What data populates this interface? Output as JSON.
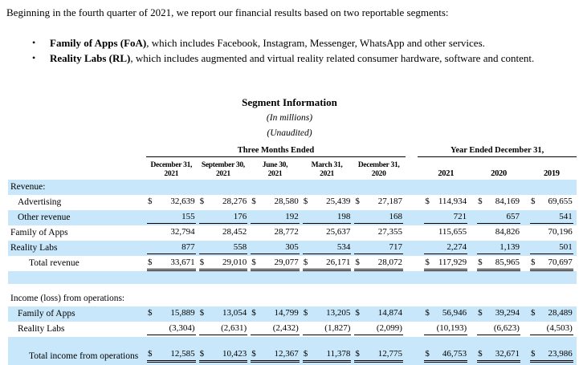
{
  "intro": {
    "paragraph": "Beginning in the fourth quarter of 2021, we report our financial results based on two reportable segments:",
    "bullet_glyph": "•",
    "bullets": [
      {
        "bold": "Family of Apps (FoA)",
        "rest": ", which includes Facebook, Instagram, Messenger, WhatsApp and other services."
      },
      {
        "bold": "Reality Labs (RL)",
        "rest": ", which includes augmented and virtual reality related consumer hardware, software and content."
      }
    ]
  },
  "table": {
    "title": "Segment Information",
    "note_millions": "(In millions)",
    "note_unaudited": "(Unaudited)",
    "dollar_sign": "$",
    "highlight_color": "#c8e7fa",
    "col_groups": [
      {
        "label": "Three Months Ended",
        "span": 5
      },
      {
        "label": "Year Ended December 31,",
        "span": 3
      }
    ],
    "columns": [
      {
        "l1": "December 31,",
        "l2": "2021"
      },
      {
        "l1": "September 30,",
        "l2": "2021"
      },
      {
        "l1": "June 30,",
        "l2": "2021"
      },
      {
        "l1": "March 31,",
        "l2": "2021"
      },
      {
        "l1": "December 31,",
        "l2": "2020"
      },
      {
        "l1": "2021",
        "l2": ""
      },
      {
        "l1": "2020",
        "l2": ""
      },
      {
        "l1": "2019",
        "l2": ""
      }
    ],
    "rows": [
      {
        "type": "section",
        "label": "Revenue:",
        "bg": "blue",
        "indent": 0
      },
      {
        "type": "data",
        "label": "Advertising",
        "bg": "white",
        "indent": 1,
        "dollar": true,
        "underline": "none",
        "values": [
          "32,639",
          "28,276",
          "28,580",
          "25,439",
          "27,187",
          "114,934",
          "84,169",
          "69,655"
        ]
      },
      {
        "type": "data",
        "label": "Other revenue",
        "bg": "blue",
        "indent": 1,
        "dollar": false,
        "underline": "single",
        "values": [
          "155",
          "176",
          "192",
          "198",
          "168",
          "721",
          "657",
          "541"
        ]
      },
      {
        "type": "data",
        "label": "Family of Apps",
        "bg": "white",
        "indent": 0,
        "dollar": false,
        "underline": "none",
        "values": [
          "32,794",
          "28,452",
          "28,772",
          "25,637",
          "27,355",
          "115,655",
          "84,826",
          "70,196"
        ]
      },
      {
        "type": "data",
        "label": "Reality Labs",
        "bg": "blue",
        "indent": 0,
        "dollar": false,
        "underline": "single",
        "values": [
          "877",
          "558",
          "305",
          "534",
          "717",
          "2,274",
          "1,139",
          "501"
        ]
      },
      {
        "type": "data",
        "label": "Total revenue",
        "bg": "white",
        "indent": 2,
        "dollar": true,
        "underline": "double",
        "values": [
          "33,671",
          "29,010",
          "29,077",
          "26,171",
          "28,072",
          "117,929",
          "85,965",
          "70,697"
        ]
      },
      {
        "type": "spacer-blue",
        "label": "",
        "bg": "blue"
      },
      {
        "type": "spacer-white",
        "label": "",
        "bg": "white"
      },
      {
        "type": "section",
        "label": "Income (loss) from operations:",
        "bg": "white",
        "indent": 0
      },
      {
        "type": "data",
        "label": "Family of Apps",
        "bg": "blue",
        "indent": 1,
        "dollar": true,
        "underline": "none",
        "values": [
          "15,889",
          "13,054",
          "14,799",
          "13,205",
          "14,874",
          "56,946",
          "39,294",
          "28,489"
        ]
      },
      {
        "type": "data",
        "label": "Reality Labs",
        "bg": "white",
        "indent": 1,
        "dollar": false,
        "underline": "single",
        "values": [
          "(3,304)",
          "(2,631)",
          "(2,432)",
          "(1,827)",
          "(2,099)",
          "(10,193)",
          "(6,623)",
          "(4,503)"
        ]
      },
      {
        "type": "data",
        "label": "Total income from operations",
        "bg": "blue",
        "indent": 2,
        "dollar": true,
        "underline": "double",
        "tall": true,
        "values": [
          "12,585",
          "10,423",
          "12,367",
          "11,378",
          "12,775",
          "46,753",
          "32,671",
          "23,986"
        ]
      }
    ]
  }
}
